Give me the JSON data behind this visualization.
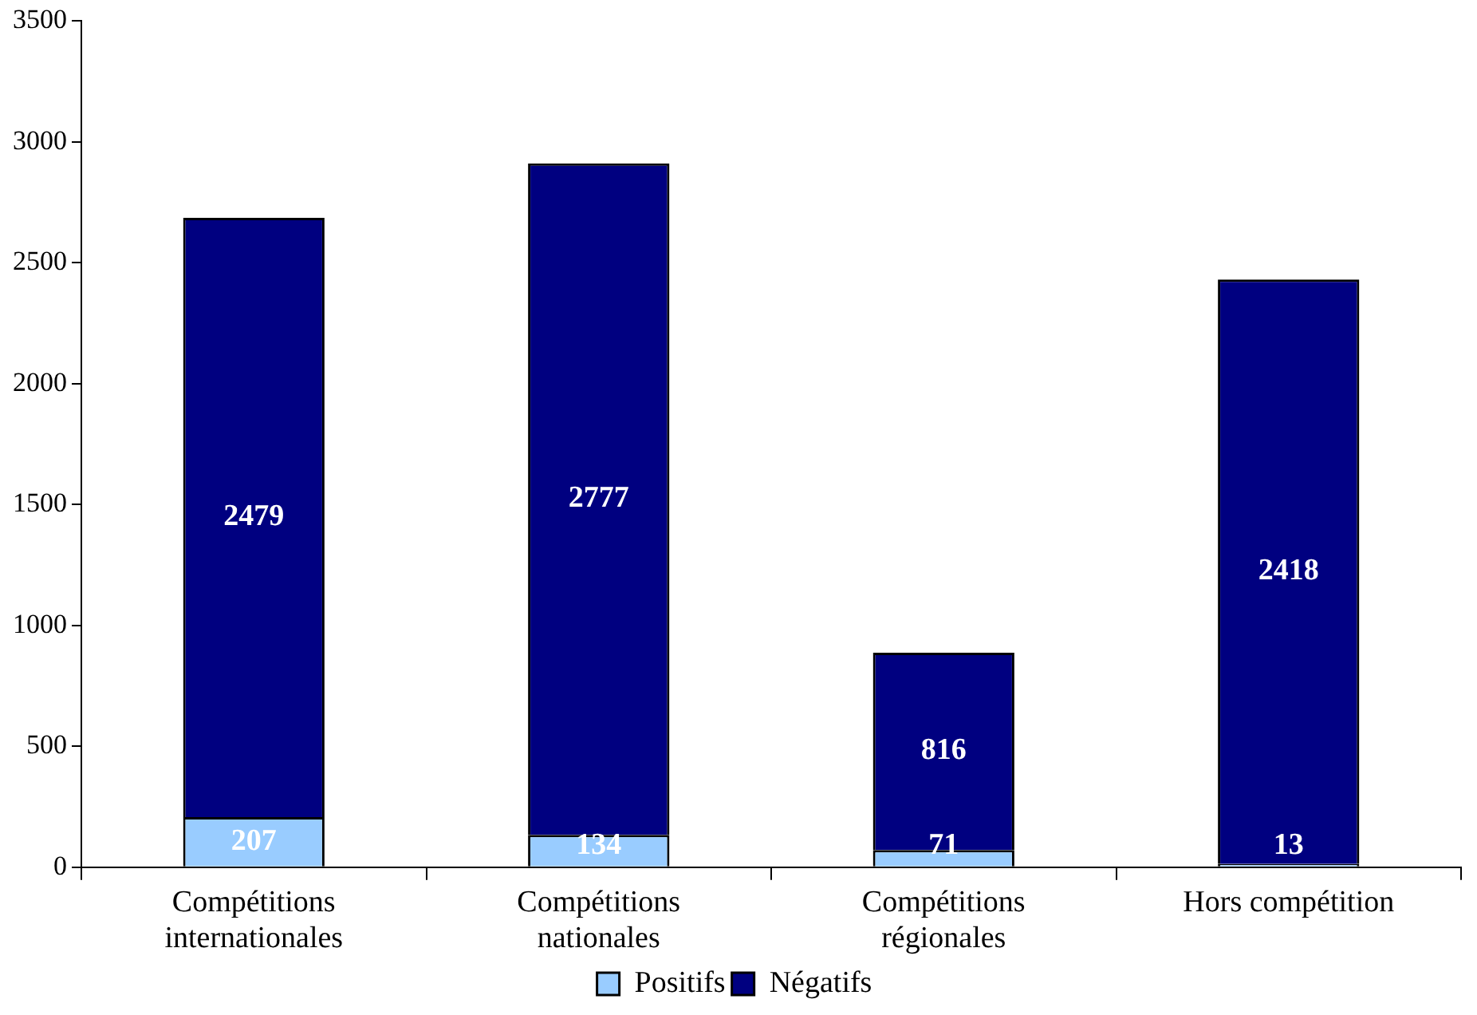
{
  "chart_data": {
    "type": "bar",
    "stacked": true,
    "categories": [
      "Compétitions internationales",
      "Compétitions nationales",
      "Compétitions régionales",
      "Hors compétition"
    ],
    "series": [
      {
        "name": "Positifs",
        "color": "#99ccff",
        "values": [
          207,
          134,
          71,
          13
        ]
      },
      {
        "name": "Négatifs",
        "color": "#000080",
        "values": [
          2479,
          2777,
          816,
          2418
        ]
      }
    ],
    "ylim": [
      0,
      3500
    ],
    "yticks": [
      0,
      500,
      1000,
      1500,
      2000,
      2500,
      3000,
      3500
    ],
    "grid": false,
    "legend": "bottom",
    "data_labels": true
  }
}
